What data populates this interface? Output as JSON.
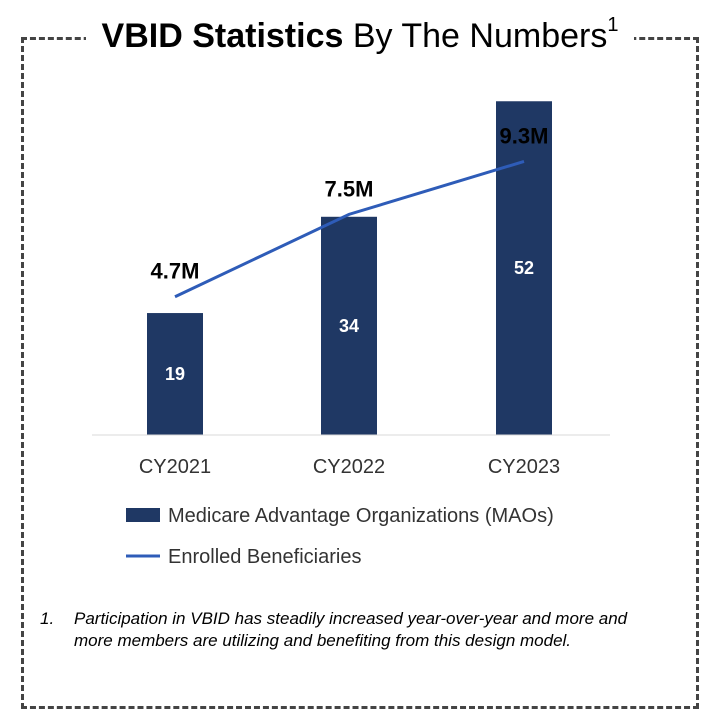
{
  "title": {
    "bold": "VBID Statistics",
    "rest": "By The Numbers",
    "sup": "1"
  },
  "chart_data": {
    "type": "bar",
    "categories": [
      "CY2021",
      "CY2022",
      "CY2023"
    ],
    "series": [
      {
        "name": "Medicare Advantage Organizations (MAOs)",
        "type": "bar",
        "values": [
          19,
          34,
          52
        ],
        "labels": [
          "19",
          "34",
          "52"
        ],
        "color": "#1f3864"
      },
      {
        "name": "Enrolled Beneficiaries",
        "type": "line",
        "values": [
          4.7,
          7.5,
          9.3
        ],
        "labels": [
          "4.7M",
          "7.5M",
          "9.3M"
        ],
        "color": "#2e5cb8"
      }
    ],
    "bar_axis_max": 55,
    "line_axis_range": [
      0,
      12
    ],
    "grid": false,
    "legend_position": "bottom-left"
  },
  "footnote": {
    "number": "1.",
    "text": "Participation in VBID has steadily increased year-over-year and more and more members are utilizing and benefiting from this design model."
  }
}
